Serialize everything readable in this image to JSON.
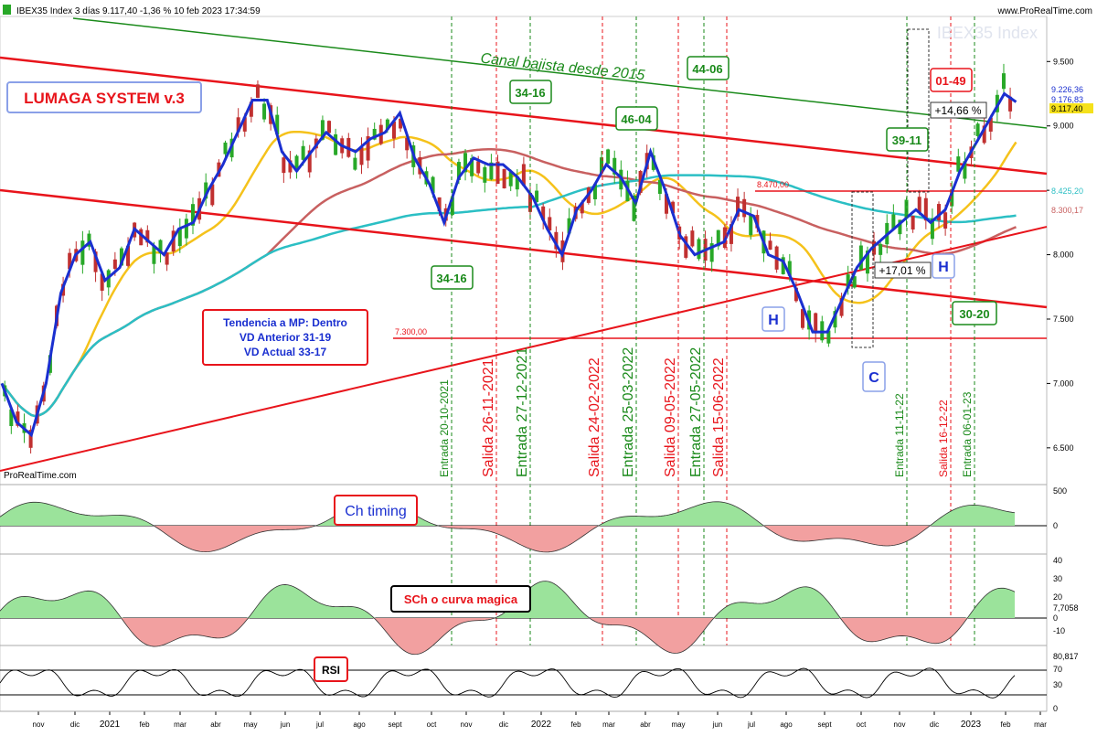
{
  "header": {
    "instrument": "IBEX35 Index 3 días 9.117,40 -1,36 % 10 feb 2023 17:34:59",
    "site": "www.ProRealTime.com",
    "watermark": "IBEX35 Index",
    "brand_footer": "ProRealTime.com"
  },
  "labels": {
    "system": "LUMAGA SYSTEM v.3",
    "channel": "Canal bajista desde 2015",
    "tendencia": [
      "Tendencia a MP: Dentro",
      "VD Anterior 31-19",
      "VD Actual 33-17"
    ],
    "counts": [
      "34-16",
      "34-16",
      "46-04",
      "44-06",
      "39-11",
      "01-49",
      "30-20"
    ],
    "h1": "H",
    "h2": "H",
    "c": "C",
    "pct1": "+17,01 %",
    "pct2": "+14,66 %",
    "level_7300": "7.300,00",
    "level_8470": "8.470,00",
    "ch_timing": "Ch timing",
    "sch": "SCh o curva magica",
    "rsi": "RSI"
  },
  "signals": [
    {
      "label": "Entrada 20-10-2021",
      "type": "entrada"
    },
    {
      "label": "Salida 26-11-2021",
      "type": "salida"
    },
    {
      "label": "Entrada 27-12-2021",
      "type": "entrada"
    },
    {
      "label": "Salida 24-02-2022",
      "type": "salida"
    },
    {
      "label": "Entrada 25-03-2022",
      "type": "entrada"
    },
    {
      "label": "Salida 09-05-2022",
      "type": "salida"
    },
    {
      "label": "Entrada 27-05-2022",
      "type": "entrada"
    },
    {
      "label": "Salida 15-06-2022",
      "type": "salida"
    },
    {
      "label": "Entrada 11-11-22",
      "type": "entrada"
    },
    {
      "label": "Salida 16-12-22",
      "type": "salida"
    },
    {
      "label": "Entrada 06-01-23",
      "type": "entrada"
    }
  ],
  "colors": {
    "red": "#e8141b",
    "green": "#1a8a1a",
    "blue": "#1a2fd0",
    "yellow": "#f5c21b",
    "cyan": "#2bbfc4",
    "brown": "#c86060",
    "up_candle": "#28a828",
    "down_candle": "#c03030"
  },
  "chart_data": {
    "type": "line",
    "title": "IBEX35 Index",
    "y_ticks": [
      "9.500",
      "9.000",
      "8.500",
      "8.000",
      "7.500",
      "7.000",
      "6.500"
    ],
    "x_ticks": [
      "nov",
      "dic",
      "2021",
      "feb",
      "mar",
      "abr",
      "may",
      "jun",
      "jul",
      "ago",
      "sept",
      "oct",
      "nov",
      "dic",
      "2022",
      "feb",
      "mar",
      "abr",
      "may",
      "jun",
      "jul",
      "ago",
      "sept",
      "oct",
      "nov",
      "dic",
      "2023",
      "feb",
      "mar"
    ],
    "right_labels": [
      "9.226,36",
      "9.176,83",
      "9.117,40",
      "8.425,20",
      "8.300,17"
    ],
    "ylim": [
      6300,
      9850
    ],
    "price_points": [
      [
        0,
        7000
      ],
      [
        0.5,
        6700
      ],
      [
        1.0,
        6600
      ],
      [
        1.5,
        7000
      ],
      [
        2.0,
        7700
      ],
      [
        2.5,
        8000
      ],
      [
        3.0,
        8100
      ],
      [
        3.5,
        7800
      ],
      [
        4.0,
        7900
      ],
      [
        4.5,
        8200
      ],
      [
        5.0,
        8100
      ],
      [
        5.5,
        8000
      ],
      [
        6.0,
        8200
      ],
      [
        6.5,
        8250
      ],
      [
        7.0,
        8500
      ],
      [
        7.5,
        8700
      ],
      [
        8.0,
        8950
      ],
      [
        8.5,
        9200
      ],
      [
        9.0,
        9200
      ],
      [
        9.5,
        8800
      ],
      [
        10.0,
        8650
      ],
      [
        10.5,
        8800
      ],
      [
        11.0,
        8950
      ],
      [
        11.5,
        8850
      ],
      [
        12.0,
        8800
      ],
      [
        12.5,
        8900
      ],
      [
        13.0,
        8950
      ],
      [
        13.5,
        9100
      ],
      [
        14.0,
        8750
      ],
      [
        14.5,
        8550
      ],
      [
        15.0,
        8250
      ],
      [
        15.5,
        8600
      ],
      [
        16.0,
        8750
      ],
      [
        16.5,
        8700
      ],
      [
        17.0,
        8700
      ],
      [
        17.5,
        8600
      ],
      [
        18.0,
        8450
      ],
      [
        18.5,
        8200
      ],
      [
        19.0,
        8000
      ],
      [
        19.5,
        8350
      ],
      [
        20.0,
        8500
      ],
      [
        20.5,
        8700
      ],
      [
        21.0,
        8600
      ],
      [
        21.5,
        8400
      ],
      [
        22.0,
        8800
      ],
      [
        22.5,
        8500
      ],
      [
        23.0,
        8150
      ],
      [
        23.5,
        8000
      ],
      [
        24.0,
        8050
      ],
      [
        24.5,
        8100
      ],
      [
        25.0,
        8350
      ],
      [
        25.5,
        8300
      ],
      [
        26.0,
        8000
      ],
      [
        26.5,
        7950
      ],
      [
        27.0,
        7700
      ],
      [
        27.5,
        7400
      ],
      [
        28.0,
        7400
      ],
      [
        28.5,
        7650
      ],
      [
        29.0,
        7900
      ],
      [
        29.5,
        8050
      ],
      [
        30.0,
        8150
      ],
      [
        30.5,
        8250
      ],
      [
        31.0,
        8350
      ],
      [
        31.5,
        8250
      ],
      [
        32.0,
        8350
      ],
      [
        32.5,
        8650
      ],
      [
        33.0,
        8850
      ],
      [
        33.5,
        9050
      ],
      [
        34.0,
        9250
      ],
      [
        34.5,
        9170
      ]
    ]
  }
}
